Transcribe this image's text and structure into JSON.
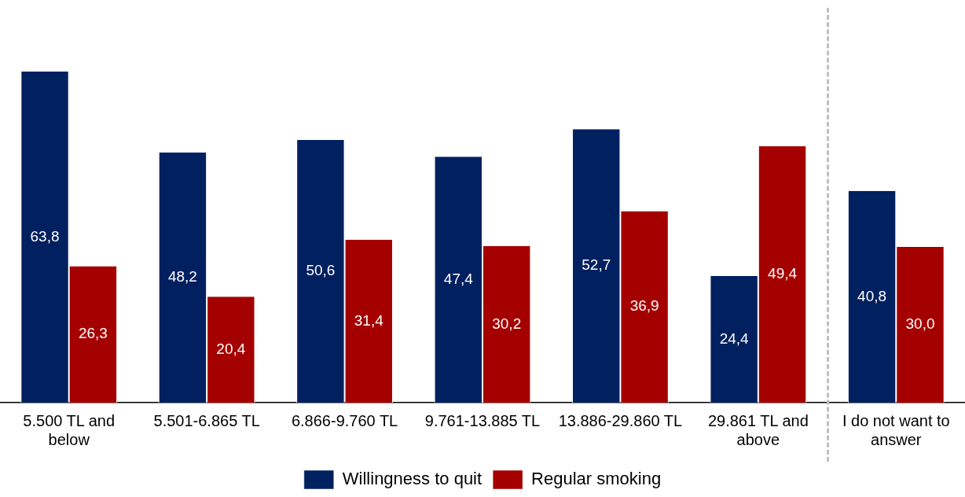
{
  "chart_data": {
    "type": "bar",
    "categories": [
      "5.500 TL and below",
      "5.501-6.865 TL",
      "6.866-9.760 TL",
      "9.761-13.885 TL",
      "13.886-29.860 TL",
      "29.861 TL and above",
      "I do not want to answer"
    ],
    "series": [
      {
        "name": "Willingness to quit",
        "color": "#002060",
        "values": [
          63.8,
          48.2,
          50.6,
          47.4,
          52.7,
          24.4,
          40.8
        ],
        "value_labels": [
          "63,8",
          "48,2",
          "50,6",
          "47,4",
          "52,7",
          "24,4",
          "40,8"
        ]
      },
      {
        "name": "Regular smoking",
        "color": "#a50000",
        "values": [
          26.3,
          20.4,
          31.4,
          30.2,
          36.9,
          49.4,
          30.0
        ],
        "value_labels": [
          "26,3",
          "20,4",
          "31,4",
          "30,2",
          "36,9",
          "49,4",
          "30,0"
        ]
      }
    ],
    "grid": false,
    "legend": "bottom"
  }
}
